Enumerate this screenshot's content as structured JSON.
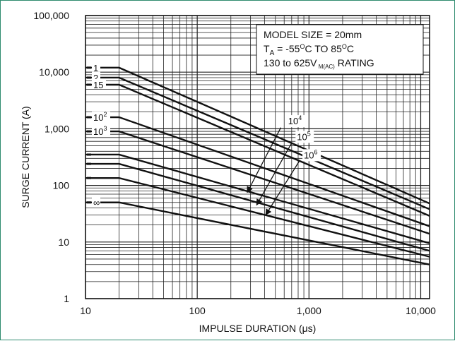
{
  "chart_data": {
    "type": "line",
    "title": "",
    "xlabel": "IMPULSE DURATION (μs)",
    "ylabel": "SURGE CURRENT (A)",
    "x_scale": "log",
    "y_scale": "log",
    "xlim": [
      10,
      12000
    ],
    "ylim": [
      1,
      100000
    ],
    "grid": true,
    "x_ticks": [
      {
        "value": 10,
        "label": "10"
      },
      {
        "value": 100,
        "label": "100"
      },
      {
        "value": 1000,
        "label": "1,000"
      },
      {
        "value": 10000,
        "label": "10,000"
      }
    ],
    "y_ticks": [
      {
        "value": 1,
        "label": "1"
      },
      {
        "value": 10,
        "label": "10"
      },
      {
        "value": 100,
        "label": "100"
      },
      {
        "value": 1000,
        "label": "1,000"
      },
      {
        "value": 10000,
        "label": "10,000"
      },
      {
        "value": 100000,
        "label": "100,000"
      }
    ],
    "annotation_lines": [
      {
        "sub": "",
        "text": "MODEL SIZE = 20mm"
      },
      {
        "sub": "",
        "text": "T"
      },
      {
        "sub": "",
        "text": "130 to 625V"
      }
    ],
    "annotation_parts": {
      "t_sub": "A",
      "t_mid": " = -55",
      "deg1": "O",
      "t_mid2": "C TO 85",
      "deg2": "O",
      "t_end": "C",
      "v_sub": "M(AC)",
      "v_end": " RATING"
    },
    "series": [
      {
        "label": "1",
        "exp": "",
        "x": [
          20,
          12000
        ],
        "y": [
          12000,
          48
        ]
      },
      {
        "label": "2",
        "exp": "",
        "x": [
          20,
          12000
        ],
        "y": [
          8000,
          38
        ]
      },
      {
        "label": "15",
        "exp": "",
        "x": [
          20,
          12000
        ],
        "y": [
          6000,
          29
        ]
      },
      {
        "label": "10",
        "exp": "2",
        "x": [
          20,
          12000
        ],
        "y": [
          1600,
          19
        ]
      },
      {
        "label": "10",
        "exp": "3",
        "x": [
          20,
          12000
        ],
        "y": [
          900,
          14
        ]
      },
      {
        "label": "",
        "exp": "",
        "x": [
          20,
          12000
        ],
        "y": [
          350,
          9.5
        ]
      },
      {
        "label": "",
        "exp": "",
        "x": [
          20,
          12000
        ],
        "y": [
          240,
          7
        ]
      },
      {
        "label": "",
        "exp": "",
        "x": [
          20,
          12000
        ],
        "y": [
          135,
          5.5
        ]
      },
      {
        "label": "∞",
        "exp": "",
        "x": [
          20,
          12000
        ],
        "y": [
          50,
          4
        ]
      }
    ],
    "arrows": [
      {
        "label": "10",
        "exp": "4",
        "text_at": [
          650,
          1200
        ],
        "from": [
          560,
          1050
        ],
        "to": [
          280,
          75
        ]
      },
      {
        "label": "10",
        "exp": "5",
        "text_at": [
          780,
          630
        ],
        "from": [
          700,
          560
        ],
        "to": [
          340,
          45
        ]
      },
      {
        "label": "10",
        "exp": "6",
        "text_at": [
          900,
          300
        ],
        "from": [
          830,
          280
        ],
        "to": [
          410,
          30
        ]
      }
    ]
  }
}
